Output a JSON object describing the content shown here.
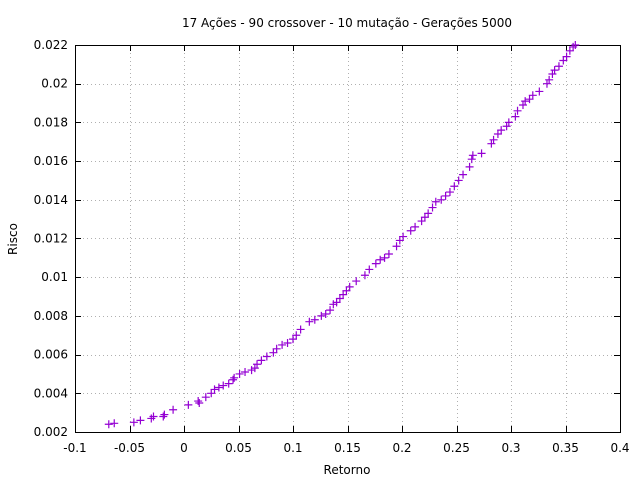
{
  "chart_data": {
    "type": "scatter",
    "title": "17 Ações - 90 crossover - 10 mutação - Gerações 5000",
    "xlabel": "Retorno",
    "ylabel": "Risco",
    "xlim": [
      -0.1,
      0.4
    ],
    "ylim": [
      0.002,
      0.022
    ],
    "grid": true,
    "legend": "none",
    "marker": "plus",
    "point_color": "#9400d3",
    "x_ticks": [
      "-0.1",
      "-0.05",
      "0",
      "0.05",
      "0.1",
      "0.15",
      "0.2",
      "0.25",
      "0.3",
      "0.35",
      "0.4"
    ],
    "y_ticks": [
      "0.002",
      "0.004",
      "0.006",
      "0.008",
      "0.01",
      "0.012",
      "0.014",
      "0.016",
      "0.018",
      "0.02",
      "0.022"
    ],
    "x_tick_values": [
      -0.1,
      -0.05,
      0,
      0.05,
      0.1,
      0.15,
      0.2,
      0.25,
      0.3,
      0.35,
      0.4
    ],
    "y_tick_values": [
      0.002,
      0.004,
      0.006,
      0.008,
      0.01,
      0.012,
      0.014,
      0.016,
      0.018,
      0.02,
      0.022
    ],
    "points": [
      [
        -0.069,
        0.0024
      ],
      [
        -0.064,
        0.00245
      ],
      [
        -0.046,
        0.0025
      ],
      [
        -0.04,
        0.0026
      ],
      [
        -0.03,
        0.0027
      ],
      [
        -0.028,
        0.0028
      ],
      [
        -0.019,
        0.0028
      ],
      [
        -0.018,
        0.0029
      ],
      [
        -0.01,
        0.00315
      ],
      [
        0.004,
        0.0034
      ],
      [
        0.013,
        0.0036
      ],
      [
        0.014,
        0.0035
      ],
      [
        0.02,
        0.0038
      ],
      [
        0.025,
        0.004
      ],
      [
        0.028,
        0.0042
      ],
      [
        0.032,
        0.0043
      ],
      [
        0.036,
        0.0044
      ],
      [
        0.041,
        0.0045
      ],
      [
        0.045,
        0.0047
      ],
      [
        0.046,
        0.0048
      ],
      [
        0.051,
        0.005
      ],
      [
        0.056,
        0.0051
      ],
      [
        0.062,
        0.0052
      ],
      [
        0.065,
        0.0053
      ],
      [
        0.067,
        0.0055
      ],
      [
        0.071,
        0.0057
      ],
      [
        0.076,
        0.0059
      ],
      [
        0.082,
        0.0061
      ],
      [
        0.085,
        0.0063
      ],
      [
        0.09,
        0.0065
      ],
      [
        0.095,
        0.0066
      ],
      [
        0.1,
        0.0068
      ],
      [
        0.103,
        0.007
      ],
      [
        0.107,
        0.0073
      ],
      [
        0.115,
        0.0077
      ],
      [
        0.12,
        0.0078
      ],
      [
        0.126,
        0.008
      ],
      [
        0.13,
        0.0081
      ],
      [
        0.134,
        0.0083
      ],
      [
        0.137,
        0.0086
      ],
      [
        0.14,
        0.0087
      ],
      [
        0.143,
        0.0089
      ],
      [
        0.146,
        0.0091
      ],
      [
        0.149,
        0.0093
      ],
      [
        0.152,
        0.0095
      ],
      [
        0.158,
        0.0098
      ],
      [
        0.166,
        0.0101
      ],
      [
        0.17,
        0.0104
      ],
      [
        0.176,
        0.0107
      ],
      [
        0.18,
        0.0109
      ],
      [
        0.184,
        0.011
      ],
      [
        0.188,
        0.0112
      ],
      [
        0.195,
        0.0116
      ],
      [
        0.198,
        0.0119
      ],
      [
        0.201,
        0.0121
      ],
      [
        0.208,
        0.0124
      ],
      [
        0.212,
        0.0126
      ],
      [
        0.218,
        0.0129
      ],
      [
        0.221,
        0.0131
      ],
      [
        0.224,
        0.0133
      ],
      [
        0.228,
        0.0136
      ],
      [
        0.231,
        0.0139
      ],
      [
        0.236,
        0.014
      ],
      [
        0.24,
        0.0142
      ],
      [
        0.244,
        0.0144
      ],
      [
        0.248,
        0.0147
      ],
      [
        0.252,
        0.015
      ],
      [
        0.256,
        0.0153
      ],
      [
        0.262,
        0.0157
      ],
      [
        0.264,
        0.0161
      ],
      [
        0.265,
        0.0163
      ],
      [
        0.273,
        0.0164
      ],
      [
        0.282,
        0.0169
      ],
      [
        0.284,
        0.0171
      ],
      [
        0.288,
        0.0174
      ],
      [
        0.291,
        0.0176
      ],
      [
        0.296,
        0.0178
      ],
      [
        0.298,
        0.018
      ],
      [
        0.304,
        0.0183
      ],
      [
        0.306,
        0.0186
      ],
      [
        0.311,
        0.0189
      ],
      [
        0.313,
        0.0191
      ],
      [
        0.317,
        0.0192
      ],
      [
        0.32,
        0.0194
      ],
      [
        0.326,
        0.0196
      ],
      [
        0.333,
        0.02
      ],
      [
        0.335,
        0.0202
      ],
      [
        0.338,
        0.0205
      ],
      [
        0.34,
        0.0207
      ],
      [
        0.344,
        0.0209
      ],
      [
        0.348,
        0.0212
      ],
      [
        0.351,
        0.0214
      ],
      [
        0.354,
        0.0217
      ],
      [
        0.357,
        0.0219
      ],
      [
        0.359,
        0.022
      ]
    ]
  }
}
